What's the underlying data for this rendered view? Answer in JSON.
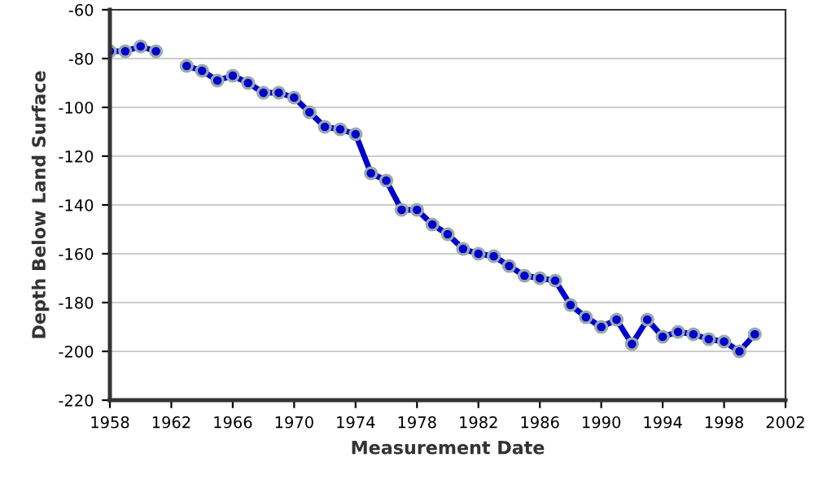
{
  "chart_data": {
    "type": "line",
    "xlabel": "Measurement Date",
    "ylabel": "Depth Below Land Surface",
    "x": [
      1958,
      1959,
      1960,
      1961,
      1962,
      1963,
      1964,
      1965,
      1966,
      1967,
      1968,
      1969,
      1970,
      1971,
      1972,
      1973,
      1974,
      1975,
      1976,
      1977,
      1978,
      1979,
      1980,
      1981,
      1982,
      1983,
      1984,
      1985,
      1986,
      1987,
      1988,
      1989,
      1990,
      1991,
      1992,
      1993,
      1994,
      1995,
      1996,
      1997,
      1998,
      1999,
      2000
    ],
    "series": [
      {
        "color": "#0000cc",
        "values": [
          -77,
          -77,
          -75,
          -77,
          null,
          -83,
          -85,
          -89,
          -87,
          -90,
          -94,
          -94,
          -96,
          -102,
          -108,
          -109,
          -111,
          -127,
          -130,
          -142,
          -142,
          -148,
          -152,
          -158,
          -160,
          -161,
          -165,
          -169,
          -170,
          -171,
          -181,
          -186,
          -190,
          -187,
          -197,
          -187,
          -194,
          -192,
          -193,
          -195,
          -196,
          -200,
          -193
        ]
      }
    ],
    "xlim": [
      1958,
      2002
    ],
    "xticks": [
      1958,
      1962,
      1966,
      1970,
      1974,
      1978,
      1982,
      1986,
      1990,
      1994,
      1998,
      2002
    ],
    "ylim": [
      -220,
      -60
    ],
    "yticks": [
      -220,
      -200,
      -180,
      -160,
      -140,
      -120,
      -100,
      -80,
      -60
    ],
    "grid": "y",
    "marker": "circle",
    "line_style": "solid",
    "legend": false
  }
}
